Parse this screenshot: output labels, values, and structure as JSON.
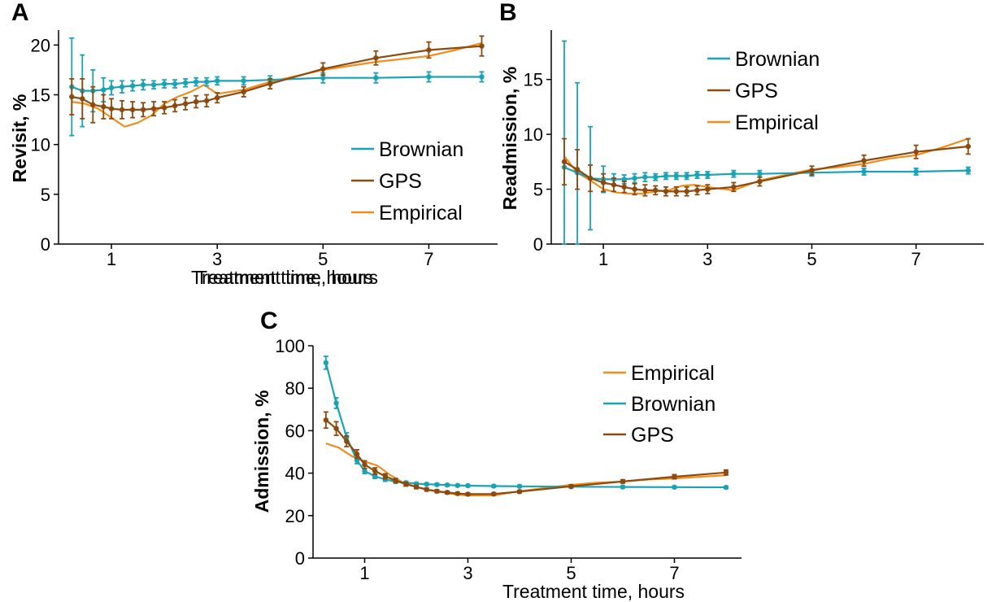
{
  "colors": {
    "Brownian": "#1aa3b5",
    "GPS": "#8c4a0f",
    "Empirical": "#f28c1c"
  },
  "chart_data": [
    {
      "panel": "A",
      "type": "line",
      "xlabel": "Treatment time, hours",
      "ylabel": "Revisit, %",
      "xlim": [
        0,
        8.3
      ],
      "ylim": [
        0,
        21.5
      ],
      "xticks": [
        1,
        3,
        5,
        7
      ],
      "yticks": [
        0,
        5,
        10,
        15,
        20
      ],
      "legend_position": "lower-right",
      "legend_order": [
        "Brownian",
        "GPS",
        "Empirical"
      ],
      "grid": false,
      "series": [
        {
          "name": "Brownian",
          "x": [
            0.25,
            0.45,
            0.65,
            0.85,
            1.0,
            1.2,
            1.4,
            1.6,
            1.8,
            2.0,
            2.2,
            2.4,
            2.6,
            2.8,
            3.0,
            3.5,
            4.0,
            5.0,
            6.0,
            7.0,
            8.0
          ],
          "y": [
            15.8,
            15.4,
            15.4,
            15.5,
            15.7,
            15.8,
            15.9,
            16.0,
            16.0,
            16.1,
            16.1,
            16.2,
            16.3,
            16.3,
            16.4,
            16.4,
            16.5,
            16.7,
            16.7,
            16.8,
            16.8
          ],
          "err": [
            4.9,
            3.6,
            2.1,
            1.2,
            0.7,
            0.6,
            0.5,
            0.5,
            0.4,
            0.4,
            0.4,
            0.4,
            0.4,
            0.4,
            0.4,
            0.4,
            0.4,
            0.5,
            0.5,
            0.5,
            0.5
          ]
        },
        {
          "name": "GPS",
          "x": [
            0.25,
            0.45,
            0.65,
            0.85,
            1.0,
            1.2,
            1.4,
            1.6,
            1.8,
            2.0,
            2.2,
            2.4,
            2.6,
            2.8,
            3.0,
            3.5,
            4.0,
            5.0,
            6.0,
            7.0,
            8.0
          ],
          "y": [
            14.8,
            14.6,
            14.0,
            13.8,
            13.6,
            13.5,
            13.5,
            13.5,
            13.6,
            13.7,
            13.9,
            14.1,
            14.3,
            14.4,
            14.7,
            15.3,
            16.1,
            17.6,
            18.7,
            19.5,
            19.9
          ],
          "err": [
            1.8,
            2.0,
            1.8,
            1.2,
            1.0,
            0.9,
            0.8,
            0.7,
            0.7,
            0.6,
            0.6,
            0.6,
            0.6,
            0.6,
            0.5,
            0.5,
            0.5,
            0.6,
            0.7,
            0.8,
            1.0
          ]
        },
        {
          "name": "Empirical",
          "x": [
            0.25,
            0.5,
            0.75,
            1.0,
            1.25,
            1.5,
            1.75,
            2.0,
            2.25,
            2.5,
            2.75,
            3.0,
            3.5,
            4.0,
            4.5,
            5.0,
            5.5,
            6.0,
            6.5,
            7.0,
            7.5,
            8.0
          ],
          "y": [
            14.3,
            14.1,
            13.6,
            12.7,
            11.8,
            12.2,
            12.9,
            14.1,
            14.8,
            15.3,
            16.0,
            15.1,
            15.5,
            16.3,
            16.9,
            17.5,
            17.9,
            18.3,
            18.6,
            18.9,
            19.5,
            20.2
          ],
          "err": []
        }
      ]
    },
    {
      "panel": "B",
      "type": "line",
      "xlabel": "Treatment time, hours",
      "ylabel": "Readmission, %",
      "xlim": [
        0,
        8.3
      ],
      "ylim": [
        0,
        19.5
      ],
      "xticks": [
        1,
        3,
        5,
        7
      ],
      "yticks": [
        0,
        5,
        10,
        15
      ],
      "legend_position": "top-center",
      "legend_order": [
        "Brownian",
        "GPS",
        "Empirical"
      ],
      "grid": false,
      "series": [
        {
          "name": "Brownian",
          "x": [
            0.25,
            0.5,
            0.75,
            1.0,
            1.2,
            1.4,
            1.6,
            1.8,
            2.0,
            2.2,
            2.4,
            2.6,
            2.8,
            3.0,
            3.5,
            4.0,
            5.0,
            6.0,
            7.0,
            8.0
          ],
          "y": [
            7.0,
            6.5,
            6.0,
            5.9,
            5.9,
            5.9,
            6.0,
            6.1,
            6.1,
            6.2,
            6.2,
            6.2,
            6.3,
            6.3,
            6.4,
            6.4,
            6.5,
            6.6,
            6.6,
            6.7
          ],
          "err": [
            11.5,
            8.2,
            4.7,
            1.2,
            0.5,
            0.4,
            0.4,
            0.4,
            0.3,
            0.3,
            0.3,
            0.3,
            0.3,
            0.3,
            0.3,
            0.3,
            0.3,
            0.3,
            0.3,
            0.3
          ]
        },
        {
          "name": "GPS",
          "x": [
            0.25,
            0.5,
            0.75,
            1.0,
            1.2,
            1.4,
            1.6,
            1.8,
            2.0,
            2.2,
            2.4,
            2.6,
            2.8,
            3.0,
            3.5,
            4.0,
            5.0,
            6.0,
            7.0,
            8.0
          ],
          "y": [
            7.5,
            6.8,
            6.0,
            5.6,
            5.4,
            5.2,
            5.0,
            4.9,
            4.9,
            4.8,
            4.8,
            4.8,
            4.9,
            5.0,
            5.2,
            5.7,
            6.7,
            7.6,
            8.4,
            8.9
          ],
          "err": [
            2.1,
            1.8,
            1.2,
            0.8,
            0.6,
            0.5,
            0.5,
            0.5,
            0.4,
            0.4,
            0.4,
            0.4,
            0.4,
            0.4,
            0.4,
            0.4,
            0.4,
            0.5,
            0.6,
            0.7
          ]
        },
        {
          "name": "Empirical",
          "x": [
            0.25,
            0.5,
            0.75,
            1.0,
            1.25,
            1.5,
            1.75,
            2.0,
            2.25,
            2.5,
            2.75,
            3.0,
            3.5,
            4.0,
            4.5,
            5.0,
            5.5,
            6.0,
            6.5,
            7.0,
            7.5,
            8.0
          ],
          "y": [
            8.0,
            6.5,
            5.8,
            5.0,
            4.7,
            4.6,
            4.6,
            4.8,
            4.9,
            5.3,
            5.4,
            5.2,
            4.9,
            5.8,
            6.3,
            6.8,
            7.0,
            7.3,
            7.8,
            8.1,
            8.8,
            9.6
          ],
          "err": []
        }
      ]
    },
    {
      "panel": "C",
      "type": "line",
      "xlabel": "Treatment time, hours",
      "ylabel": "Admission, %",
      "xlim": [
        0,
        8.3
      ],
      "ylim": [
        0,
        100
      ],
      "xticks": [
        1,
        3,
        5,
        7
      ],
      "yticks": [
        0,
        20,
        40,
        60,
        80,
        100
      ],
      "legend_position": "top-right",
      "legend_order": [
        "Empirical",
        "Brownian",
        "GPS"
      ],
      "grid": false,
      "series": [
        {
          "name": "Brownian",
          "x": [
            0.25,
            0.45,
            0.65,
            0.85,
            1.0,
            1.2,
            1.4,
            1.6,
            1.8,
            2.0,
            2.2,
            2.4,
            2.6,
            2.8,
            3.0,
            3.5,
            4.0,
            5.0,
            6.0,
            7.0,
            8.0
          ],
          "y": [
            92,
            73,
            57,
            46,
            41,
            38.5,
            37,
            36,
            35.5,
            35,
            34.8,
            34.6,
            34.4,
            34.2,
            34.1,
            33.9,
            33.8,
            33.6,
            33.5,
            33.4,
            33.3
          ],
          "err": [
            3,
            2.5,
            2,
            1.5,
            1.2,
            1,
            0.8,
            0.7,
            0.6,
            0.5,
            0.5,
            0.5,
            0.5,
            0.5,
            0.5,
            0.5,
            0.5,
            0.5,
            0.5,
            0.5,
            0.5
          ]
        },
        {
          "name": "GPS",
          "x": [
            0.25,
            0.45,
            0.65,
            0.85,
            1.0,
            1.2,
            1.4,
            1.6,
            1.8,
            2.0,
            2.2,
            2.4,
            2.6,
            2.8,
            3.0,
            3.5,
            4.0,
            5.0,
            6.0,
            7.0,
            8.0
          ],
          "y": [
            65,
            61,
            55,
            49,
            44,
            41,
            38.5,
            36.5,
            34.8,
            33.5,
            32.3,
            31.5,
            30.9,
            30.4,
            30.1,
            30.2,
            31.3,
            33.8,
            36.1,
            38.3,
            40.3
          ],
          "err": [
            3.8,
            3.2,
            2.5,
            2,
            1.8,
            1.5,
            1.2,
            1,
            0.9,
            0.8,
            0.7,
            0.7,
            0.6,
            0.6,
            0.6,
            0.6,
            0.6,
            0.7,
            0.8,
            1,
            1.2
          ]
        },
        {
          "name": "Empirical",
          "x": [
            0.25,
            0.5,
            0.75,
            1.0,
            1.25,
            1.5,
            1.75,
            2.0,
            2.25,
            2.5,
            2.75,
            3.0,
            3.5,
            4.0,
            4.5,
            5.0,
            5.5,
            6.0,
            6.5,
            7.0,
            7.5,
            8.0
          ],
          "y": [
            54,
            52,
            48,
            45.5,
            43.5,
            39,
            35.5,
            33.5,
            32,
            31,
            30,
            29.5,
            29.5,
            31.5,
            33,
            34.5,
            35.5,
            36,
            37,
            37.5,
            38.3,
            39
          ],
          "err": []
        }
      ]
    }
  ]
}
